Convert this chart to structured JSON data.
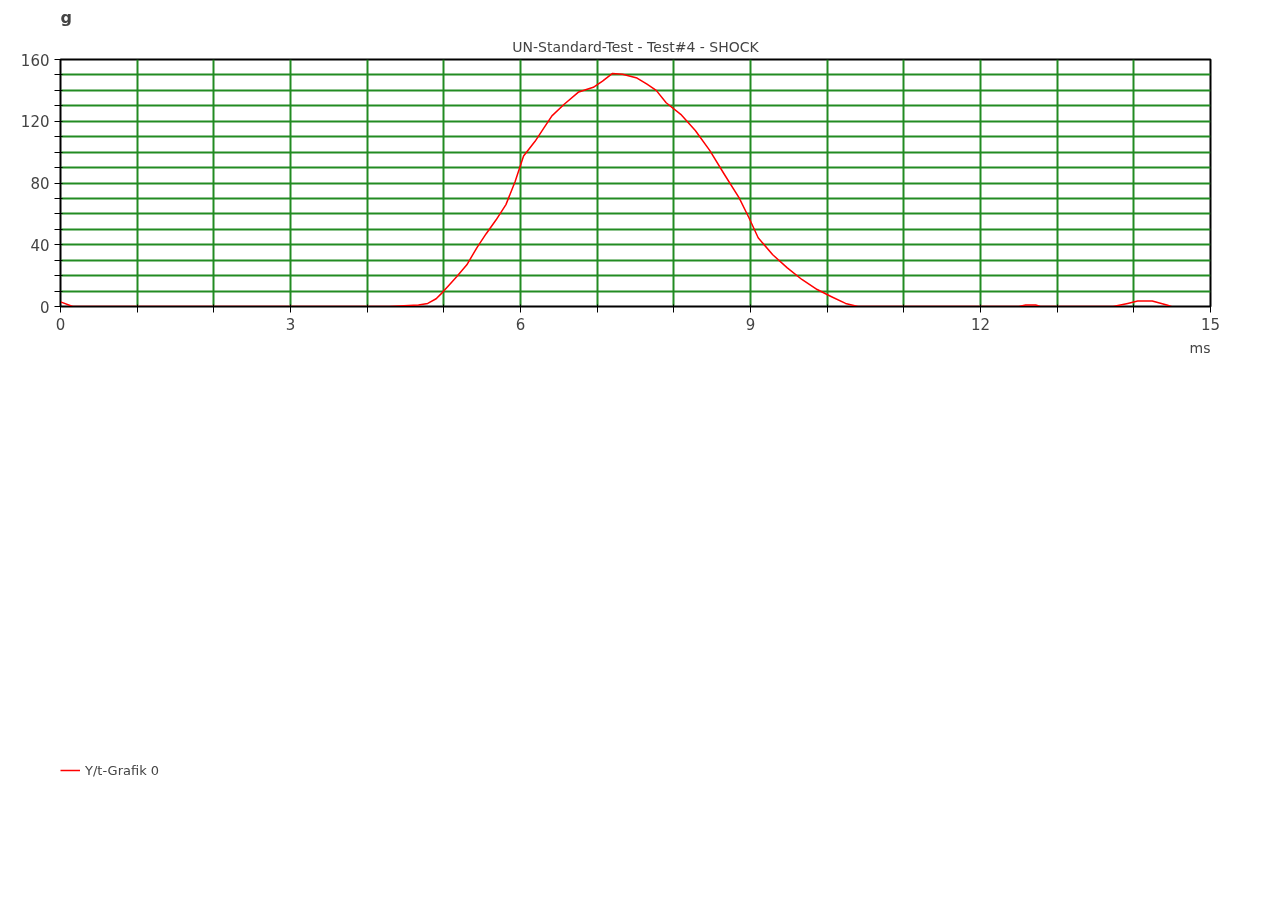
{
  "chart_data": {
    "type": "line",
    "title": "UN-Standard-Test - Test#4 - SHOCK",
    "xlabel": "ms",
    "ylabel": "g",
    "x": [
      0,
      0.16,
      1,
      2,
      3,
      4,
      4.29,
      4.67,
      4.79,
      4.9,
      4.98,
      5.07,
      5.17,
      5.3,
      5.43,
      5.55,
      5.68,
      5.81,
      5.93,
      6.04,
      6.19,
      6.31,
      6.41,
      6.57,
      6.76,
      6.95,
      7.07,
      7.2,
      7.33,
      7.52,
      7.65,
      7.77,
      7.9,
      8.09,
      8.28,
      8.47,
      8.66,
      8.85,
      8.98,
      9.1,
      9.29,
      9.48,
      9.67,
      9.87,
      10.05,
      10.24,
      10.4,
      11,
      12,
      12.5,
      12.59,
      12.72,
      12.78,
      13,
      13.73,
      13.92,
      14.05,
      14.24,
      14.43,
      14.49
    ],
    "series": [
      {
        "name": "Y/t-Grafik 0",
        "color": "#ff0000",
        "values": [
          3,
          0,
          0,
          0,
          0,
          0,
          0,
          1,
          2,
          5,
          9,
          14,
          19.5,
          27,
          38,
          47,
          56,
          66,
          81,
          97.5,
          107,
          116,
          123.5,
          131,
          139,
          142,
          146,
          151,
          150.5,
          148,
          144,
          140,
          132,
          124.5,
          114,
          101,
          85.5,
          70.5,
          57.5,
          44.5,
          33.5,
          25,
          17.5,
          11,
          6.5,
          2,
          0,
          0,
          0,
          0,
          1,
          1,
          0,
          0,
          0,
          2,
          3.5,
          3.5,
          1,
          0
        ]
      }
    ],
    "xlim": [
      0,
      15
    ],
    "ylim": [
      0,
      160
    ],
    "xticks": [
      0,
      {
        "value": 1,
        "label": null
      },
      {
        "value": 2,
        "label": null
      },
      3,
      {
        "value": 4,
        "label": null
      },
      {
        "value": 5,
        "label": null
      },
      6,
      {
        "value": 7,
        "label": null
      },
      {
        "value": 8,
        "label": null
      },
      9,
      {
        "value": 10,
        "label": null
      },
      {
        "value": 11,
        "label": null
      },
      12,
      {
        "value": 13,
        "label": null
      },
      {
        "value": 14,
        "label": null
      },
      15
    ],
    "yticks": [
      0,
      {
        "value": 10,
        "label": null
      },
      {
        "value": 20,
        "label": null
      },
      {
        "value": 30,
        "label": null
      },
      40,
      {
        "value": 50,
        "label": null
      },
      {
        "value": 60,
        "label": null
      },
      {
        "value": 70,
        "label": null
      },
      80,
      {
        "value": 90,
        "label": null
      },
      {
        "value": 100,
        "label": null
      },
      {
        "value": 110,
        "label": null
      },
      120,
      {
        "value": 130,
        "label": null
      },
      {
        "value": 140,
        "label": null
      },
      {
        "value": 150,
        "label": null
      },
      160
    ],
    "grid": true,
    "legend": "bottom left",
    "marker": "none",
    "line_style": "solid"
  }
}
